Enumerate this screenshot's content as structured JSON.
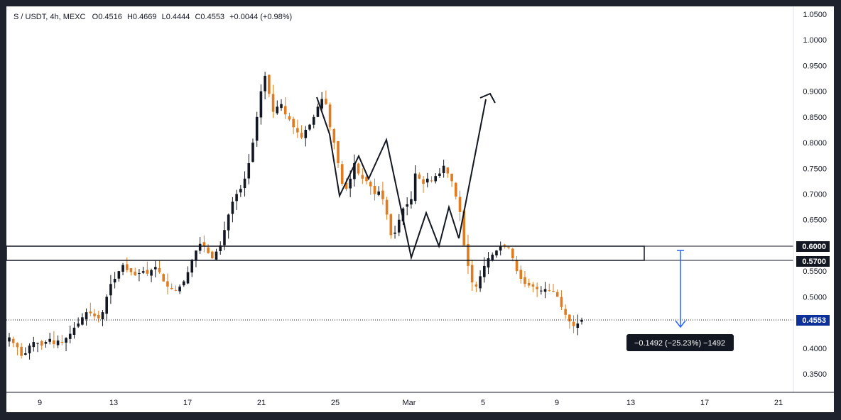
{
  "header": {
    "symbol": "S / USDT, 4h, MEXC",
    "o_label": "O",
    "o_value": "0.4516",
    "h_label": "H",
    "h_value": "0.4669",
    "l_label": "L",
    "l_value": "0.4444",
    "c_label": "C",
    "c_value": "0.4553",
    "change": "+0.0044 (+0.98%)"
  },
  "measure_label": "−0.1492 (−25.23%) −1492",
  "colors": {
    "up": "#131722",
    "down": "#e07b1f",
    "measure_arrow": "#2962ff",
    "badge_bg": "#131722",
    "last_price_badge": "#0c3299"
  },
  "chart_data": {
    "type": "candlestick",
    "symbol": "S / USDT",
    "timeframe": "4h",
    "exchange": "MEXC",
    "y_ticks": [
      "1.0500",
      "1.0000",
      "0.9500",
      "0.9000",
      "0.8500",
      "0.8000",
      "0.7500",
      "0.7000",
      "0.6500",
      "0.5500",
      "0.5000",
      "0.4000",
      "0.3500"
    ],
    "x_ticks": [
      "9",
      "13",
      "17",
      "21",
      "25",
      "Mar",
      "5",
      "9",
      "13",
      "17",
      "21"
    ],
    "ylim": [
      0.335,
      1.065
    ],
    "price_badges": [
      "0.6000",
      "0.5700",
      "0.4553"
    ],
    "support_zone": {
      "top": 0.6,
      "bottom": 0.57
    },
    "last_price": 0.4553,
    "measure": {
      "from": 0.591,
      "to": 0.4418
    },
    "close_path": [
      0.421,
      0.41,
      0.402,
      0.385,
      0.39,
      0.405,
      0.412,
      0.41,
      0.405,
      0.412,
      0.418,
      0.408,
      0.415,
      0.412,
      0.42,
      0.428,
      0.44,
      0.448,
      0.46,
      0.47,
      0.468,
      0.462,
      0.458,
      0.47,
      0.5,
      0.525,
      0.535,
      0.55,
      0.562,
      0.552,
      0.548,
      0.542,
      0.546,
      0.55,
      0.545,
      0.552,
      0.558,
      0.548,
      0.53,
      0.52,
      0.515,
      0.512,
      0.52,
      0.53,
      0.548,
      0.572,
      0.59,
      0.603,
      0.598,
      0.585,
      0.575,
      0.588,
      0.6,
      0.63,
      0.66,
      0.685,
      0.7,
      0.71,
      0.73,
      0.76,
      0.8,
      0.85,
      0.9,
      0.93,
      0.895,
      0.86,
      0.87,
      0.875,
      0.855,
      0.845,
      0.83,
      0.82,
      0.81,
      0.825,
      0.835,
      0.85,
      0.87,
      0.885,
      0.875,
      0.83,
      0.8,
      0.76,
      0.72,
      0.71,
      0.73,
      0.76,
      0.74,
      0.73,
      0.725,
      0.715,
      0.7,
      0.705,
      0.69,
      0.66,
      0.62,
      0.625,
      0.65,
      0.672,
      0.68,
      0.69,
      0.74,
      0.73,
      0.72,
      0.73,
      0.725,
      0.735,
      0.74,
      0.755,
      0.74,
      0.725,
      0.695,
      0.665,
      0.6,
      0.56,
      0.528,
      0.52,
      0.54,
      0.56,
      0.575,
      0.582,
      0.59,
      0.598,
      0.6,
      0.595,
      0.575,
      0.55,
      0.535,
      0.525,
      0.522,
      0.52,
      0.515,
      0.512,
      0.515,
      0.512,
      0.51,
      0.5,
      0.48,
      0.465,
      0.452,
      0.443,
      0.448,
      0.4553
    ]
  }
}
